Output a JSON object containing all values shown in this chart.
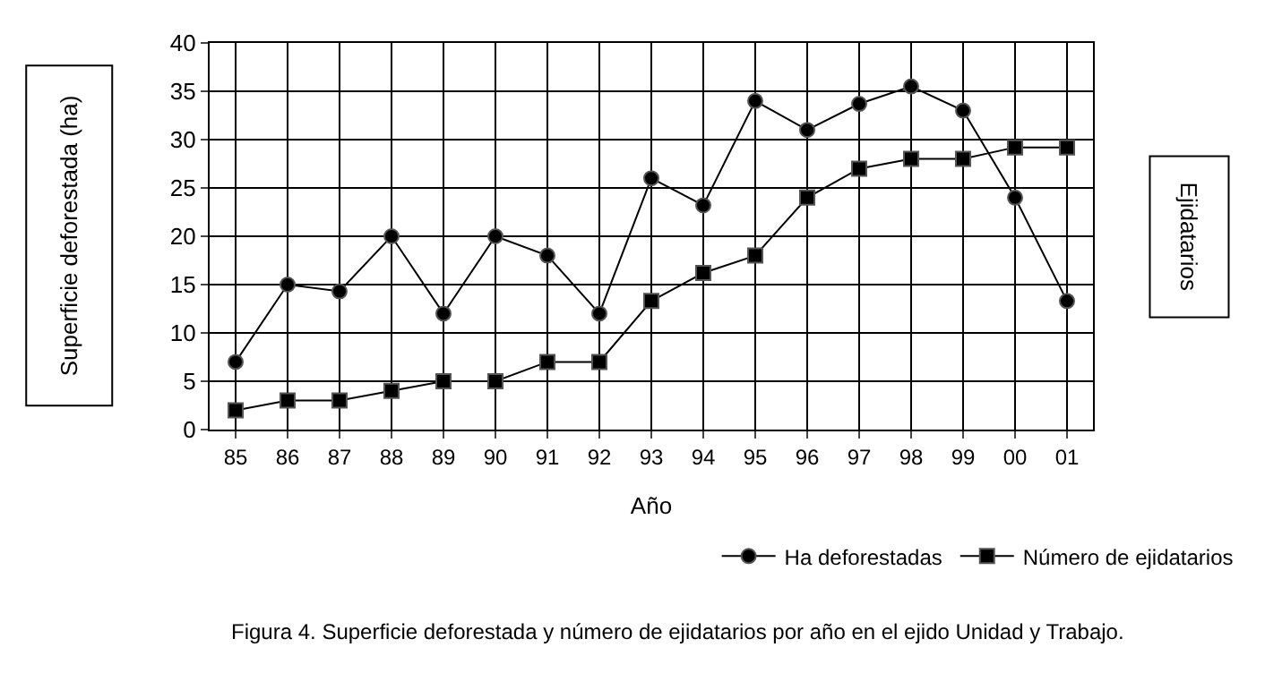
{
  "chart_data": {
    "type": "line",
    "categories": [
      "85",
      "86",
      "87",
      "88",
      "89",
      "90",
      "91",
      "92",
      "93",
      "94",
      "95",
      "96",
      "97",
      "98",
      "99",
      "00",
      "01"
    ],
    "series": [
      {
        "name": "Ha deforestadas",
        "color": "#000000",
        "marker": "circle",
        "values": [
          7,
          15,
          14.3,
          20,
          12,
          20,
          18,
          12,
          26,
          23.2,
          34,
          31,
          33.7,
          35.5,
          33,
          24,
          13.3
        ]
      },
      {
        "name": "Número de ejidatarios",
        "color": "#000000",
        "marker": "square",
        "values": [
          2,
          3,
          3,
          4,
          5,
          5,
          7,
          7,
          13.3,
          16.2,
          18,
          24,
          27,
          28,
          28,
          29.2,
          29.2
        ]
      }
    ],
    "xlabel": "Año",
    "ylabel": "Superficie deforestada (ha)",
    "ylim": [
      0,
      40
    ],
    "yticks": [
      0,
      5,
      10,
      15,
      20,
      25,
      30,
      35,
      40
    ],
    "grid": true,
    "legend": "bottom right",
    "line_style": "solid",
    "annotations": [
      "Ejidatarios",
      "Figura 4. Superficie deforestada y número de ejidatarios por año en el ejido Unidad y Trabajo."
    ]
  }
}
